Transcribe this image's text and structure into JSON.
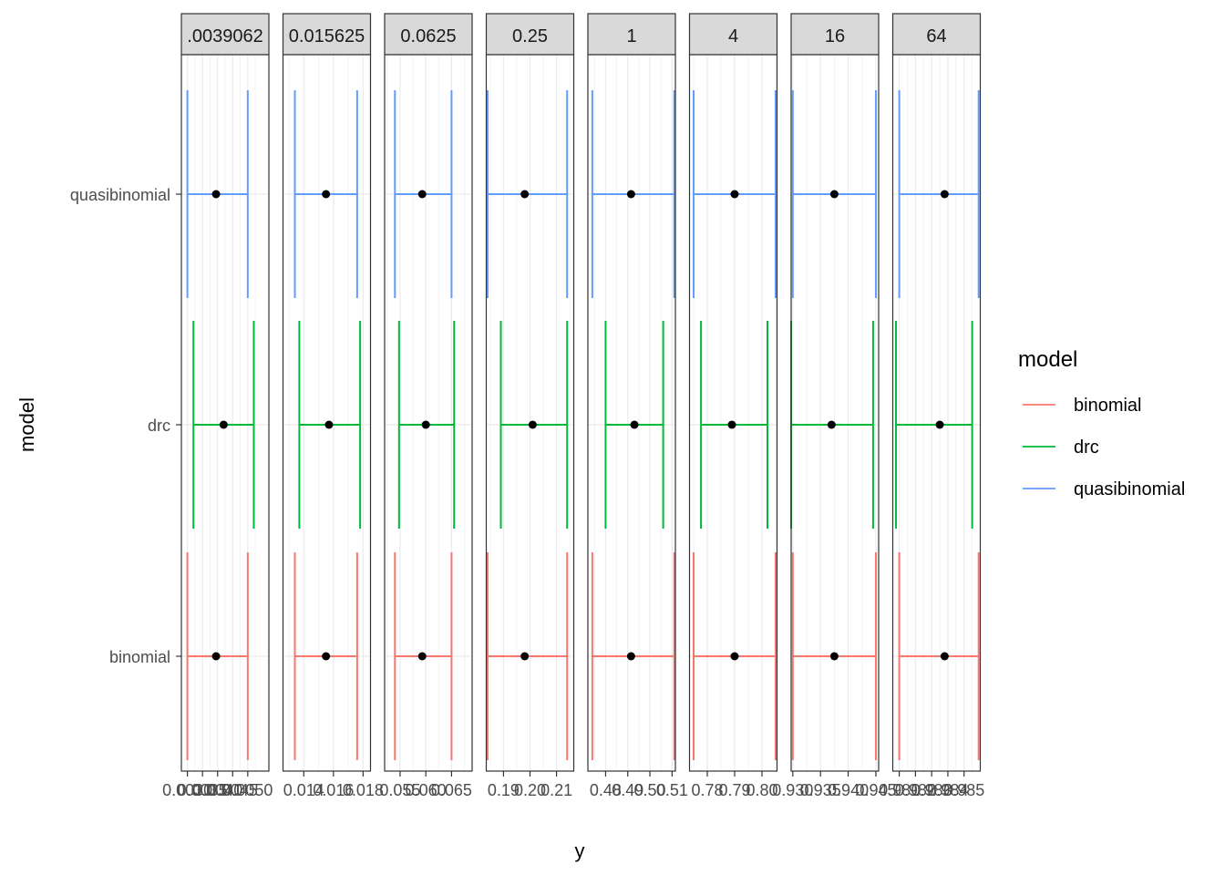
{
  "chart_data": {
    "type": "errorbar-facet",
    "xlabel": "y",
    "ylabel": "model",
    "models": [
      "quasibinomial",
      "drc",
      "binomial"
    ],
    "colors": {
      "binomial": "#F8766D",
      "drc": "#00BA38",
      "quasibinomial": "#619CFF"
    },
    "legend": {
      "title": "model",
      "placement": "right",
      "entries": [
        "binomial",
        "drc",
        "quasibinomial"
      ]
    },
    "panels": [
      {
        "label": ".0039062",
        "xlim": [
          0.0028,
          0.0057
        ],
        "tick_labels": [
          "0.0030",
          "0.0035",
          "0.0040",
          "0.0045",
          "0.0050"
        ],
        "tick_values": [
          0.003,
          0.0035,
          0.004,
          0.0045,
          0.005
        ],
        "series": {
          "quasibinomial": {
            "est": 0.00395,
            "lo": 0.003,
            "hi": 0.005
          },
          "drc": {
            "est": 0.0042,
            "lo": 0.0032,
            "hi": 0.0052
          },
          "binomial": {
            "est": 0.00395,
            "lo": 0.003,
            "hi": 0.005
          }
        }
      },
      {
        "label": "0.015625",
        "xlim": [
          0.0126,
          0.0185
        ],
        "tick_labels": [
          "0.014",
          "0.016",
          "0.018"
        ],
        "tick_values": [
          0.014,
          0.016,
          0.018
        ],
        "series": {
          "quasibinomial": {
            "est": 0.0155,
            "lo": 0.0134,
            "hi": 0.0176
          },
          "drc": {
            "est": 0.0157,
            "lo": 0.0137,
            "hi": 0.0178
          },
          "binomial": {
            "est": 0.0155,
            "lo": 0.0134,
            "hi": 0.0176
          }
        }
      },
      {
        "label": "0.0625",
        "xlim": [
          0.052,
          0.069
        ],
        "tick_labels": [
          "0.055",
          "0.060",
          "0.065"
        ],
        "tick_values": [
          0.055,
          0.06,
          0.065
        ],
        "series": {
          "quasibinomial": {
            "est": 0.0593,
            "lo": 0.054,
            "hi": 0.065
          },
          "drc": {
            "est": 0.06,
            "lo": 0.0548,
            "hi": 0.0655
          },
          "binomial": {
            "est": 0.0593,
            "lo": 0.054,
            "hi": 0.065
          }
        }
      },
      {
        "label": "0.25",
        "xlim": [
          0.1835,
          0.2165
        ],
        "tick_labels": [
          "0.19",
          "0.20",
          "0.21"
        ],
        "tick_values": [
          0.19,
          0.2,
          0.21
        ],
        "series": {
          "quasibinomial": {
            "est": 0.198,
            "lo": 0.184,
            "hi": 0.214
          },
          "drc": {
            "est": 0.201,
            "lo": 0.189,
            "hi": 0.214
          },
          "binomial": {
            "est": 0.198,
            "lo": 0.184,
            "hi": 0.214
          }
        }
      },
      {
        "label": "1",
        "xlim": [
          0.472,
          0.5115
        ],
        "tick_labels": [
          "0.48",
          "0.49",
          "0.50",
          "0.51"
        ],
        "tick_values": [
          0.48,
          0.49,
          0.5,
          0.51
        ],
        "series": {
          "quasibinomial": {
            "est": 0.4915,
            "lo": 0.474,
            "hi": 0.511
          },
          "drc": {
            "est": 0.493,
            "lo": 0.48,
            "hi": 0.506
          },
          "binomial": {
            "est": 0.4915,
            "lo": 0.474,
            "hi": 0.511
          }
        }
      },
      {
        "label": "4",
        "xlim": [
          0.7735,
          0.8055
        ],
        "tick_labels": [
          "0.78",
          "0.79",
          "0.80"
        ],
        "tick_values": [
          0.78,
          0.79,
          0.8
        ],
        "series": {
          "quasibinomial": {
            "est": 0.79,
            "lo": 0.775,
            "hi": 0.805
          },
          "drc": {
            "est": 0.789,
            "lo": 0.7777,
            "hi": 0.802
          },
          "binomial": {
            "est": 0.79,
            "lo": 0.775,
            "hi": 0.805
          }
        }
      },
      {
        "label": "16",
        "xlim": [
          0.9297,
          0.9455
        ],
        "tick_labels": [
          "0.930",
          "0.935",
          "0.940",
          "0.945"
        ],
        "tick_values": [
          0.93,
          0.935,
          0.94,
          0.945
        ],
        "series": {
          "quasibinomial": {
            "est": 0.9375,
            "lo": 0.93,
            "hi": 0.945
          },
          "drc": {
            "est": 0.937,
            "lo": 0.9297,
            "hi": 0.9445
          },
          "binomial": {
            "est": 0.9375,
            "lo": 0.93,
            "hi": 0.945
          }
        }
      },
      {
        "label": "64",
        "xlim": [
          0.9806,
          0.986
        ],
        "tick_labels": [
          "0.981",
          "0.982",
          "0.983",
          "0.984",
          "0.985"
        ],
        "tick_values": [
          0.981,
          0.982,
          0.983,
          0.984,
          0.985
        ],
        "series": {
          "quasibinomial": {
            "est": 0.9838,
            "lo": 0.981,
            "hi": 0.9859
          },
          "drc": {
            "est": 0.9835,
            "lo": 0.9808,
            "hi": 0.9855
          },
          "binomial": {
            "est": 0.9838,
            "lo": 0.981,
            "hi": 0.9859
          }
        }
      }
    ]
  }
}
